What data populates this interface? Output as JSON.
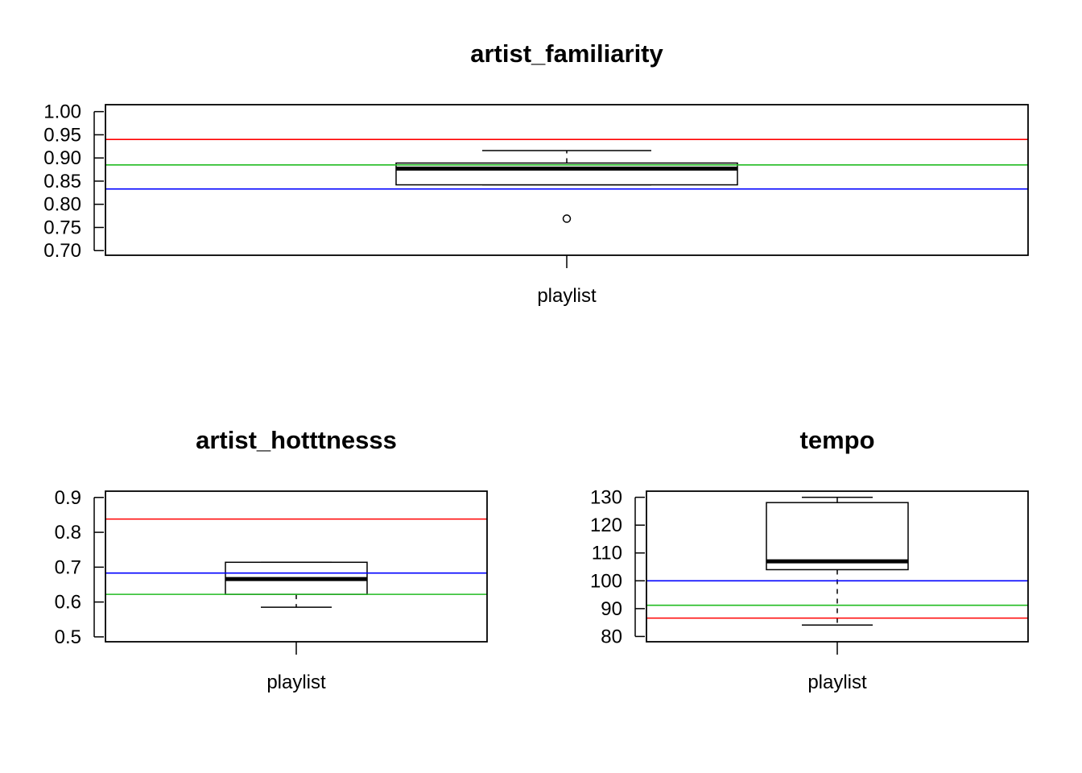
{
  "chart_data": [
    {
      "type": "boxplot",
      "title": "artist_familiarity",
      "categories": [
        "playlist"
      ],
      "ylim": [
        0.69,
        1.015
      ],
      "yticks": [
        0.7,
        0.75,
        0.8,
        0.85,
        0.9,
        0.95,
        1.0
      ],
      "ytick_labels": [
        "0.70",
        "0.75",
        "0.80",
        "0.85",
        "0.90",
        "0.95",
        "1.00"
      ],
      "box": {
        "whisker_low": 0.842,
        "q1": 0.842,
        "median": 0.877,
        "q3": 0.889,
        "whisker_high": 0.916
      },
      "outliers": [
        0.769
      ],
      "reference_lines": [
        {
          "value": 0.94,
          "color": "#ff0000"
        },
        {
          "value": 0.885,
          "color": "#22bb22"
        },
        {
          "value": 0.833,
          "color": "#0000ff"
        }
      ]
    },
    {
      "type": "boxplot",
      "title": "artist_hotttnesss",
      "categories": [
        "playlist"
      ],
      "ylim": [
        0.486,
        0.918
      ],
      "yticks": [
        0.5,
        0.6,
        0.7,
        0.8,
        0.9
      ],
      "ytick_labels": [
        "0.5",
        "0.6",
        "0.7",
        "0.8",
        "0.9"
      ],
      "box": {
        "whisker_low": 0.585,
        "q1": 0.622,
        "median": 0.666,
        "q3": 0.714,
        "whisker_high": 0.714
      },
      "outliers": [],
      "reference_lines": [
        {
          "value": 0.838,
          "color": "#ff0000"
        },
        {
          "value": 0.683,
          "color": "#0000ff"
        },
        {
          "value": 0.622,
          "color": "#22bb22"
        }
      ]
    },
    {
      "type": "boxplot",
      "title": "tempo",
      "categories": [
        "playlist"
      ],
      "ylim": [
        78.1,
        132.2
      ],
      "yticks": [
        80,
        90,
        100,
        110,
        120,
        130
      ],
      "ytick_labels": [
        "80",
        "90",
        "100",
        "110",
        "120",
        "130"
      ],
      "box": {
        "whisker_low": 84.1,
        "q1": 104.0,
        "median": 107.0,
        "q3": 128.1,
        "whisker_high": 130.0
      },
      "outliers": [],
      "reference_lines": [
        {
          "value": 100.0,
          "color": "#0000ff"
        },
        {
          "value": 91.2,
          "color": "#22bb22"
        },
        {
          "value": 86.6,
          "color": "#ff0000"
        }
      ]
    }
  ]
}
